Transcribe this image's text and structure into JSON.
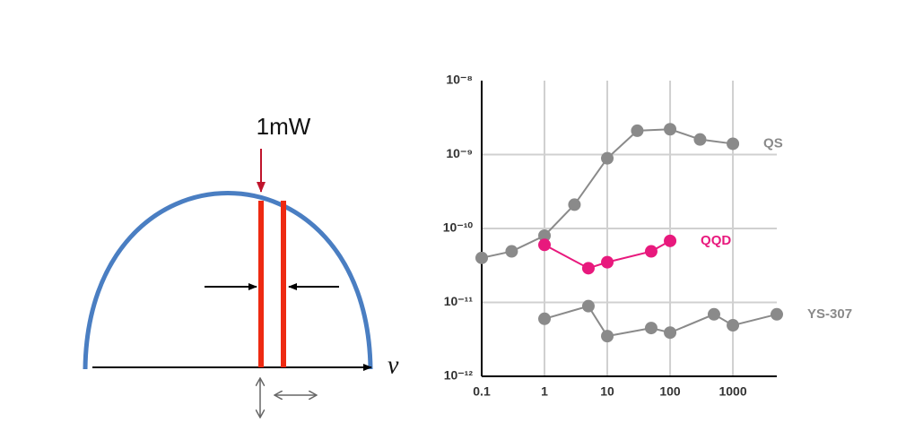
{
  "diagram": {
    "power_label": "1mW",
    "axis_label": "ν"
  },
  "chart_data": {
    "type": "line",
    "log_x": true,
    "log_y": true,
    "grid": true,
    "xlim": [
      0.1,
      5000
    ],
    "ylim": [
      1e-12,
      1e-08
    ],
    "xticks": [
      0.1,
      1,
      10,
      100,
      1000
    ],
    "yticks": [
      {
        "value": 1e-12,
        "label": "10⁻¹²"
      },
      {
        "value": 1e-11,
        "label": "10⁻¹¹"
      },
      {
        "value": 1e-10,
        "label": "10⁻¹⁰"
      },
      {
        "value": 1e-09,
        "label": "10⁻⁹"
      },
      {
        "value": 1e-08,
        "label": "10⁻⁸"
      }
    ],
    "series": [
      {
        "name": "QS",
        "color": "#8a8a8a",
        "x": [
          0.1,
          0.3,
          1,
          3,
          10,
          30,
          100,
          300,
          1000
        ],
        "values": [
          4e-11,
          4.9e-11,
          8e-11,
          2.1e-10,
          8.9e-10,
          2.1e-09,
          2.2e-09,
          1.6e-09,
          1.4e-09
        ]
      },
      {
        "name": "QQD",
        "color": "#e8197d",
        "x": [
          1,
          5,
          10,
          50,
          100
        ],
        "values": [
          6e-11,
          2.9e-11,
          3.5e-11,
          4.9e-11,
          6.8e-11
        ]
      },
      {
        "name": "YS-307",
        "color": "#8a8a8a",
        "x": [
          1,
          5,
          10,
          50,
          100,
          500,
          1000,
          5000
        ],
        "values": [
          6e-12,
          8.9e-12,
          3.5e-12,
          4.5e-12,
          3.9e-12,
          6.9e-12,
          4.9e-12,
          6.9e-12
        ]
      }
    ]
  }
}
